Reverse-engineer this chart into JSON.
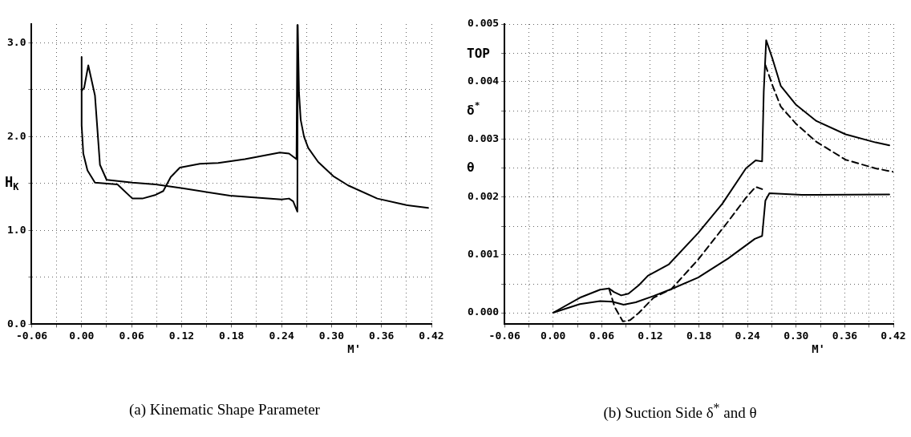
{
  "chart_data": [
    {
      "type": "line",
      "title": "(a) Kinematic Shape Parameter",
      "xlabel": "M'",
      "ylabel": "H$_{K}$",
      "grid": true,
      "legend": false,
      "marker": "none",
      "xlim": [
        -0.06,
        0.42
      ],
      "ylim": [
        0,
        3.2
      ],
      "xticks": [
        -0.06,
        {
          "value": -0.03,
          "label": null
        },
        {
          "value": 0,
          "label": "0.00"
        },
        {
          "value": 0.03,
          "label": null
        },
        0.06,
        {
          "value": 0.09,
          "label": null
        },
        0.12,
        {
          "value": 0.15,
          "label": null
        },
        0.18,
        {
          "value": 0.21,
          "label": null
        },
        0.24,
        {
          "value": 0.27,
          "label": null
        },
        {
          "value": 0.3,
          "label": "0.30"
        },
        {
          "value": 0.33,
          "label": null
        },
        0.36,
        {
          "value": 0.39,
          "label": null
        },
        0.42
      ],
      "yticks": [
        {
          "value": 0,
          "label": "0.0"
        },
        {
          "value": 0.5,
          "label": null
        },
        {
          "value": 1,
          "label": "1.0"
        },
        {
          "value": 1.5,
          "label": null
        },
        {
          "value": 2,
          "label": "2.0"
        },
        {
          "value": 2.5,
          "label": null
        },
        {
          "value": 3,
          "label": "3.0"
        }
      ],
      "series": [
        {
          "color": "#000000",
          "line_style": "solid",
          "x": [
            0,
            0,
            0.002,
            0.007,
            0.016,
            0.043,
            0.061,
            0.073,
            0.089,
            0.098,
            0.107,
            0.118,
            0.142,
            0.164,
            0.196,
            0.238,
            0.249,
            0.258,
            0.259
          ],
          "values": [
            2.85,
            2.12,
            1.82,
            1.64,
            1.51,
            1.49,
            1.34,
            1.34,
            1.38,
            1.42,
            1.57,
            1.67,
            1.71,
            1.72,
            1.76,
            1.83,
            1.82,
            1.76,
            3.19
          ]
        },
        {
          "color": "#000000",
          "line_style": "solid",
          "x": [
            0,
            0.003,
            0.008,
            0.016,
            0.022,
            0.03,
            0.061,
            0.089,
            0.121,
            0.178,
            0.24,
            0.249,
            0.254,
            0.259,
            0.2595,
            0.261,
            0.263,
            0.267,
            0.272,
            0.284,
            0.302,
            0.32,
            0.355,
            0.39,
            0.416
          ],
          "values": [
            2.49,
            2.52,
            2.76,
            2.44,
            1.7,
            1.54,
            1.51,
            1.49,
            1.45,
            1.37,
            1.33,
            1.34,
            1.31,
            1.2,
            3.19,
            2.47,
            2.18,
            2.0,
            1.88,
            1.73,
            1.58,
            1.48,
            1.34,
            1.27,
            1.24
          ]
        }
      ]
    },
    {
      "type": "line",
      "title": "(b) Suction Side δ$^{*}$ and θ",
      "xlabel": "M'",
      "annotations": [
        "TOP",
        "δ$^{*}$",
        "θ"
      ],
      "grid": true,
      "legend": false,
      "marker": "none",
      "xlim": [
        -0.06,
        0.42
      ],
      "ylim": [
        -0.0002,
        0.005
      ],
      "xticks": [
        -0.06,
        {
          "value": -0.03,
          "label": null
        },
        {
          "value": 0,
          "label": "0.00"
        },
        {
          "value": 0.03,
          "label": null
        },
        0.06,
        {
          "value": 0.09,
          "label": null
        },
        0.12,
        {
          "value": 0.15,
          "label": null
        },
        0.18,
        {
          "value": 0.21,
          "label": null
        },
        0.24,
        {
          "value": 0.27,
          "label": null
        },
        {
          "value": 0.3,
          "label": "0.30"
        },
        {
          "value": 0.33,
          "label": null
        },
        0.36,
        {
          "value": 0.39,
          "label": null
        },
        0.42
      ],
      "yticks": [
        {
          "value": 0,
          "label": "0.000"
        },
        {
          "value": 0.0005,
          "label": null
        },
        0.001,
        {
          "value": 0.0015,
          "label": null
        },
        0.002,
        {
          "value": 0.0025,
          "label": null
        },
        0.003,
        {
          "value": 0.0035,
          "label": null
        },
        0.004,
        {
          "value": 0.0045,
          "label": null
        },
        0.005
      ],
      "series": [
        {
          "color": "#000000",
          "line_style": "solid",
          "x": [
            0,
            0.033,
            0.058,
            0.069,
            0.075,
            0.084,
            0.093,
            0.106,
            0.117,
            0.143,
            0.179,
            0.209,
            0.238,
            0.25,
            0.258,
            0.26,
            0.263,
            0.271,
            0.281,
            0.3,
            0.325,
            0.361,
            0.398,
            0.415
          ],
          "values": [
            0,
            0.00026,
            0.0004,
            0.00042,
            0.00036,
            0.0003,
            0.00033,
            0.00048,
            0.00064,
            0.00084,
            0.00138,
            0.00189,
            0.0025,
            0.00264,
            0.00262,
            0.00383,
            0.00472,
            0.00439,
            0.00393,
            0.0036,
            0.00332,
            0.00309,
            0.00295,
            0.0029
          ]
        },
        {
          "color": "#000000",
          "line_style": "solid",
          "x": [
            0,
            0.033,
            0.058,
            0.073,
            0.087,
            0.102,
            0.124,
            0.146,
            0.179,
            0.216,
            0.249,
            0.258,
            0.262,
            0.267,
            0.307,
            0.415
          ],
          "values": [
            0,
            0.00015,
            0.0002,
            0.00019,
            0.00014,
            0.00018,
            0.00029,
            0.00041,
            0.00061,
            0.00094,
            0.00128,
            0.00133,
            0.00194,
            0.00207,
            0.00204,
            0.00205
          ]
        },
        {
          "color": "#000000",
          "line_style": "dashed",
          "x": [
            0.069,
            0.076,
            0.086,
            0.095,
            0.106,
            0.124,
            0.146,
            0.179,
            0.216,
            0.238,
            0.25,
            0.258,
            0.26,
            0.262,
            0.271,
            0.281,
            0.3,
            0.325,
            0.361,
            0.398,
            0.42
          ],
          "values": [
            0.00042,
            0.0001,
            -0.00015,
            -0.00013,
            0,
            0.00026,
            0.00041,
            0.00092,
            0.00158,
            0.00199,
            0.00218,
            0.00214,
            null,
            0.00429,
            0.00393,
            0.00357,
            0.00327,
            0.00296,
            0.00265,
            0.0025,
            0.00244
          ]
        }
      ]
    }
  ]
}
